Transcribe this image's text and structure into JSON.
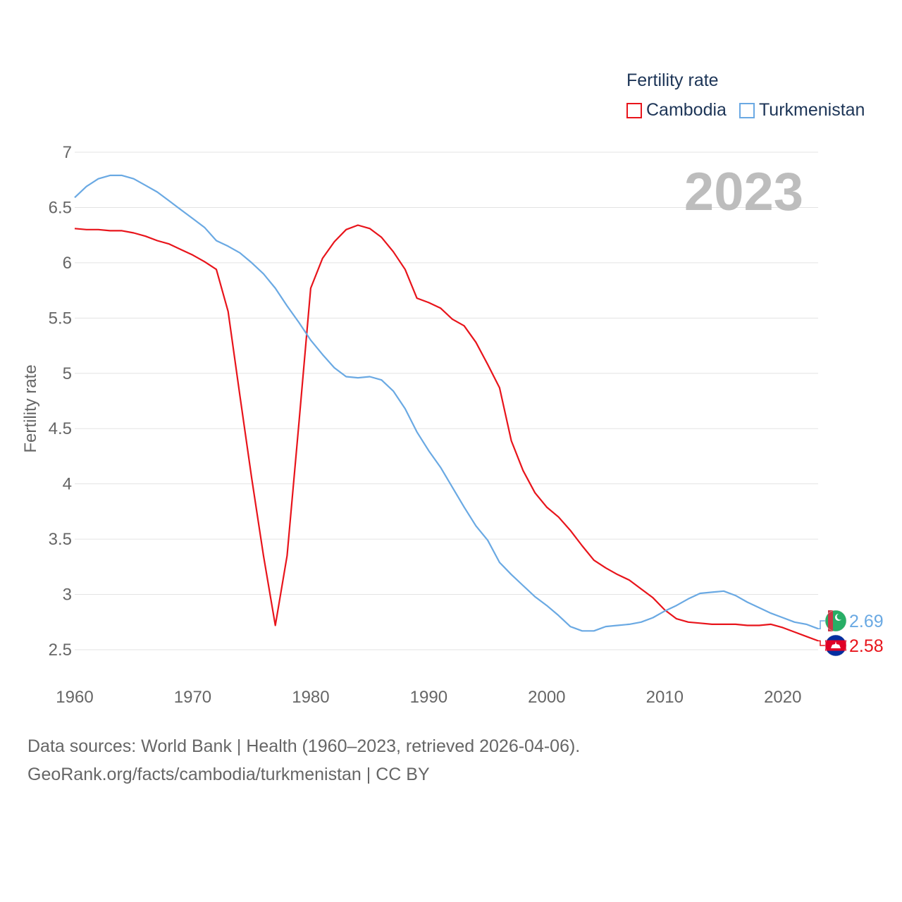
{
  "legend": {
    "title": "Fertility rate",
    "items": [
      {
        "label": "Cambodia",
        "color": "#e8141b"
      },
      {
        "label": "Turkmenistan",
        "color": "#6aa9e3"
      }
    ]
  },
  "year_label": "2023",
  "footer": {
    "line1": "Data sources: World Bank | Health (1960–2023, retrieved 2026-04-06).",
    "line2": "GeoRank.org/facts/cambodia/turkmenistan | CC BY"
  },
  "chart_data": {
    "type": "line",
    "title": "Fertility rate",
    "xlabel": "",
    "ylabel": "Fertility rate",
    "xlim": [
      1960,
      2023
    ],
    "ylim": [
      2.5,
      7
    ],
    "yticks": [
      "2.5",
      "3",
      "3.5",
      "4",
      "4.5",
      "5",
      "5.5",
      "6",
      "6.5",
      "7"
    ],
    "xticks": [
      "1960",
      "1970",
      "1980",
      "1990",
      "2000",
      "2010",
      "2020"
    ],
    "grid": true,
    "x": [
      1960,
      1961,
      1962,
      1963,
      1964,
      1965,
      1966,
      1967,
      1968,
      1969,
      1970,
      1971,
      1972,
      1973,
      1974,
      1975,
      1976,
      1977,
      1978,
      1979,
      1980,
      1981,
      1982,
      1983,
      1984,
      1985,
      1986,
      1987,
      1988,
      1989,
      1990,
      1991,
      1992,
      1993,
      1994,
      1995,
      1996,
      1997,
      1998,
      1999,
      2000,
      2001,
      2002,
      2003,
      2004,
      2005,
      2006,
      2007,
      2008,
      2009,
      2010,
      2011,
      2012,
      2013,
      2014,
      2015,
      2016,
      2017,
      2018,
      2019,
      2020,
      2021,
      2022,
      2023
    ],
    "series": [
      {
        "name": "Cambodia",
        "color": "#e8141b",
        "end_label": "2.58",
        "values": [
          6.31,
          6.3,
          6.3,
          6.29,
          6.29,
          6.27,
          6.24,
          6.2,
          6.17,
          6.12,
          6.07,
          6.01,
          5.94,
          5.56,
          4.8,
          4.05,
          3.35,
          2.72,
          3.35,
          4.55,
          5.77,
          6.04,
          6.19,
          6.3,
          6.34,
          6.31,
          6.23,
          6.1,
          5.94,
          5.68,
          5.64,
          5.59,
          5.49,
          5.43,
          5.28,
          5.08,
          4.87,
          4.39,
          4.12,
          3.92,
          3.79,
          3.7,
          3.58,
          3.44,
          3.31,
          3.24,
          3.18,
          3.13,
          3.05,
          2.97,
          2.86,
          2.78,
          2.75,
          2.74,
          2.73,
          2.73,
          2.73,
          2.72,
          2.72,
          2.73,
          2.7,
          2.66,
          2.62,
          2.58
        ]
      },
      {
        "name": "Turkmenistan",
        "color": "#6aa9e3",
        "end_label": "2.69",
        "values": [
          6.59,
          6.69,
          6.76,
          6.79,
          6.79,
          6.76,
          6.7,
          6.64,
          6.56,
          6.48,
          6.4,
          6.32,
          6.2,
          6.15,
          6.09,
          6.0,
          5.9,
          5.77,
          5.61,
          5.46,
          5.3,
          5.17,
          5.05,
          4.97,
          4.96,
          4.97,
          4.94,
          4.84,
          4.68,
          4.47,
          4.3,
          4.15,
          3.97,
          3.79,
          3.62,
          3.49,
          3.29,
          3.18,
          3.08,
          2.98,
          2.9,
          2.81,
          2.71,
          2.67,
          2.67,
          2.71,
          2.72,
          2.73,
          2.75,
          2.79,
          2.85,
          2.9,
          2.96,
          3.01,
          3.02,
          3.03,
          2.99,
          2.93,
          2.88,
          2.83,
          2.79,
          2.75,
          2.73,
          2.69
        ]
      }
    ]
  }
}
